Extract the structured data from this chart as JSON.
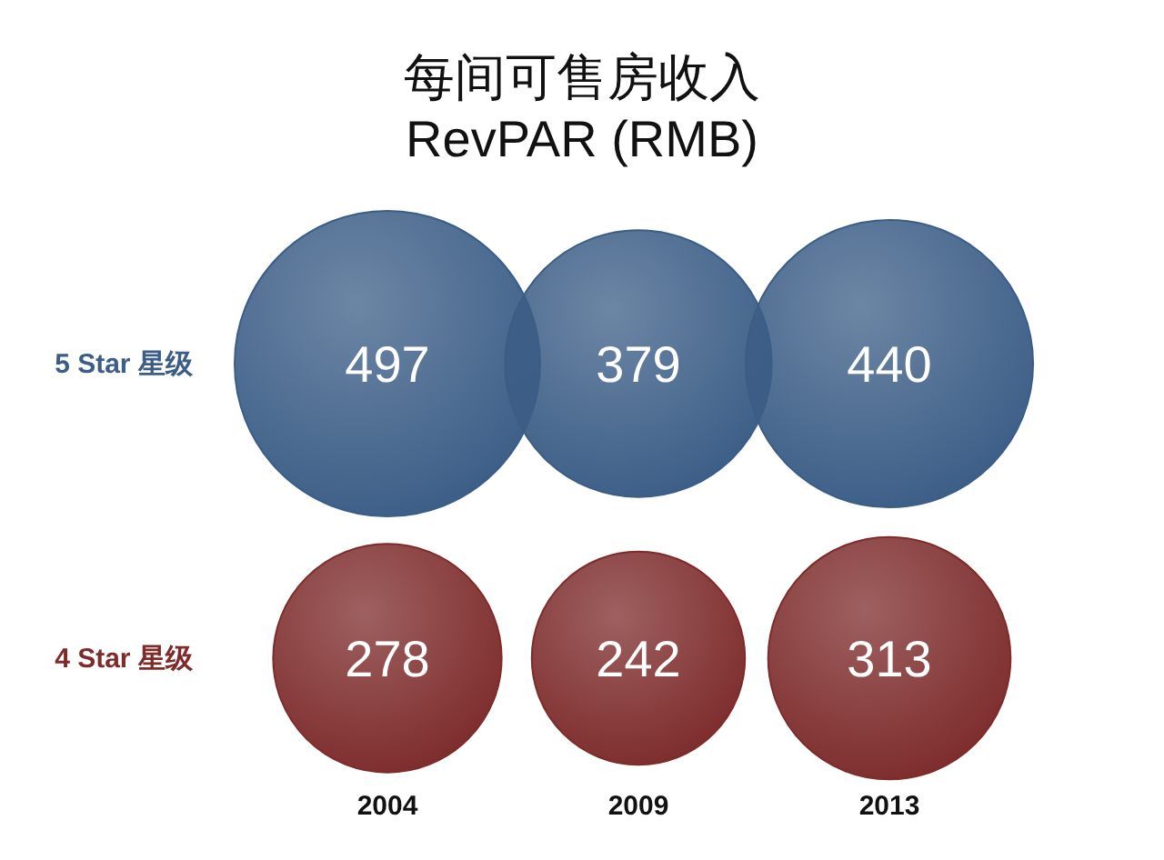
{
  "chart_data": {
    "type": "other",
    "title": "每间可售房收入\nRevPAR (RMB)",
    "categories": [
      "2004",
      "2009",
      "2013"
    ],
    "series": [
      {
        "name": "5 Star 星级",
        "color": "#3b5d86",
        "values": [
          497,
          379,
          440
        ]
      },
      {
        "name": "4 Star 星级",
        "color": "#7d2b2b",
        "values": [
          278,
          242,
          313
        ]
      }
    ],
    "data_labels": true
  }
}
